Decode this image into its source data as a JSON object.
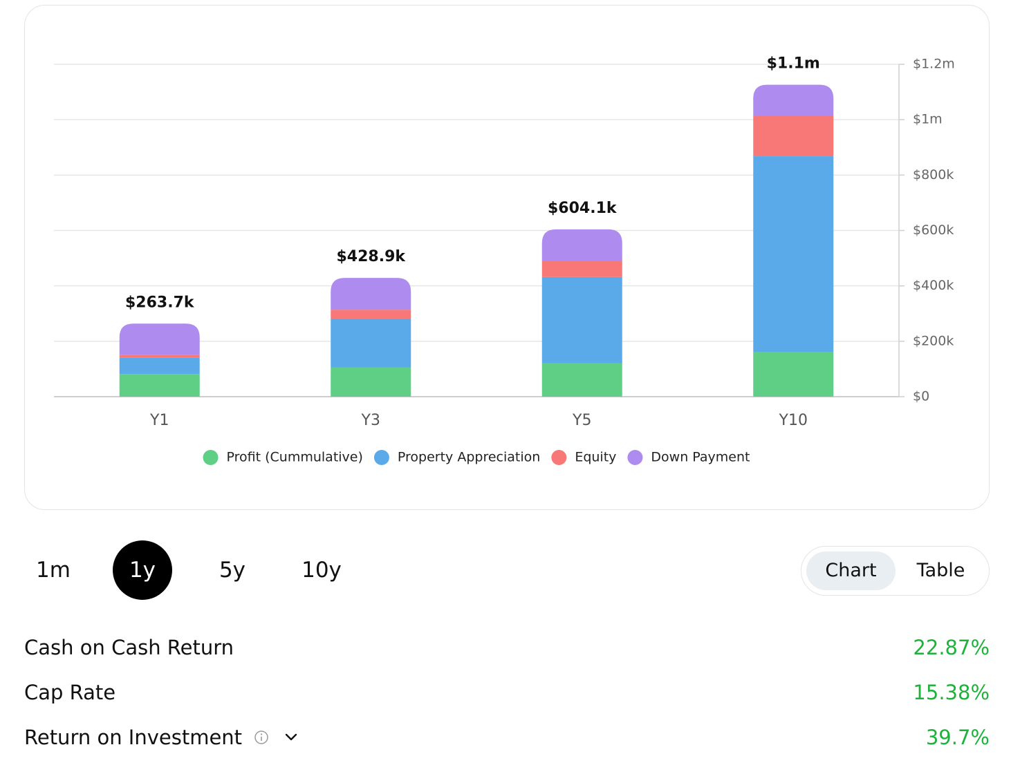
{
  "chart_data": {
    "type": "stacked-bar",
    "categories": [
      "Y1",
      "Y3",
      "Y5",
      "Y10"
    ],
    "series": [
      {
        "name": "Profit (Cummulative)",
        "color": "#5fcf85",
        "values": [
          82000,
          105000,
          120000,
          160000
        ]
      },
      {
        "name": "Property Appreciation",
        "color": "#5aaaea",
        "values": [
          58000,
          177000,
          312000,
          708000
        ]
      },
      {
        "name": "Equity",
        "color": "#f87878",
        "values": [
          10000,
          32000,
          57000,
          145000
        ]
      },
      {
        "name": "Down Payment",
        "color": "#ae8bef",
        "values": [
          113700,
          114900,
          115100,
          113000
        ]
      }
    ],
    "totals": [
      263700,
      428900,
      604100,
      1126000
    ],
    "total_labels": [
      "$263.7k",
      "$428.9k",
      "$604.1k",
      "$1.1m"
    ],
    "ylim": [
      0,
      1200000
    ],
    "yticks": [
      {
        "value": 0,
        "label": "$0"
      },
      {
        "value": 200000,
        "label": "$200k"
      },
      {
        "value": 400000,
        "label": "$400k"
      },
      {
        "value": 600000,
        "label": "$600k"
      },
      {
        "value": 800000,
        "label": "$800k"
      },
      {
        "value": 1000000,
        "label": "$1m"
      },
      {
        "value": 1200000,
        "label": "$1.2m"
      }
    ],
    "grid": true,
    "y_axis_side": "right",
    "legend": "bottom"
  },
  "ranges": {
    "options": [
      "1m",
      "1y",
      "5y",
      "10y"
    ],
    "selected": 1
  },
  "view_toggle": {
    "options": [
      "Chart",
      "Table"
    ],
    "selected": 0
  },
  "metrics": [
    {
      "label": "Cash on Cash Return",
      "value": "22.87%"
    },
    {
      "label": "Cap Rate",
      "value": "15.38%"
    },
    {
      "label": "Return on Investment",
      "value": "39.7%"
    }
  ]
}
